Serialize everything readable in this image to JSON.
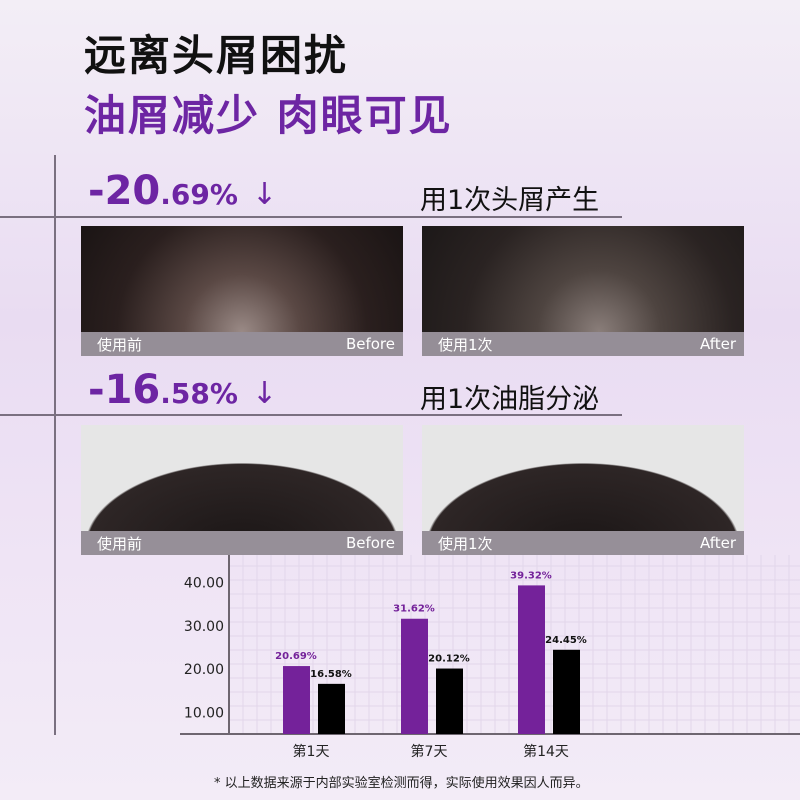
{
  "headline": "远离头屑困扰",
  "subheadline": "油屑减少 肉眼可见",
  "sections": [
    {
      "pct_main": "-20",
      "pct_decimal": ".69%",
      "arrow": "↓",
      "caption": "用1次头屑产生",
      "before_label": "使用前",
      "before_en": "Before",
      "after_label": "使用1次",
      "after_en": "After"
    },
    {
      "pct_main": "-16",
      "pct_decimal": ".58%",
      "arrow": "↓",
      "caption": "用1次油脂分泌",
      "before_label": "使用前",
      "before_en": "Before",
      "after_label": "使用1次",
      "after_en": "After"
    }
  ],
  "chart_data": {
    "type": "bar",
    "categories": [
      "第1天",
      "第7天",
      "第14天"
    ],
    "series": [
      {
        "values": [
          20.69,
          31.62,
          39.32
        ],
        "labels": [
          "20.69%",
          "31.62%",
          "39.32%"
        ],
        "color": "#74229a"
      },
      {
        "values": [
          16.58,
          20.12,
          24.45
        ],
        "labels": [
          "16.58%",
          "20.12%",
          "24.45%"
        ],
        "color": "#000000"
      }
    ],
    "yticks": [
      "10.00",
      "20.00",
      "30.00",
      "40.00"
    ],
    "ylim": [
      5,
      46
    ],
    "grid": true
  },
  "footnote": "* 以上数据来源于内部实验室检测而得，实际使用效果因人而异。"
}
